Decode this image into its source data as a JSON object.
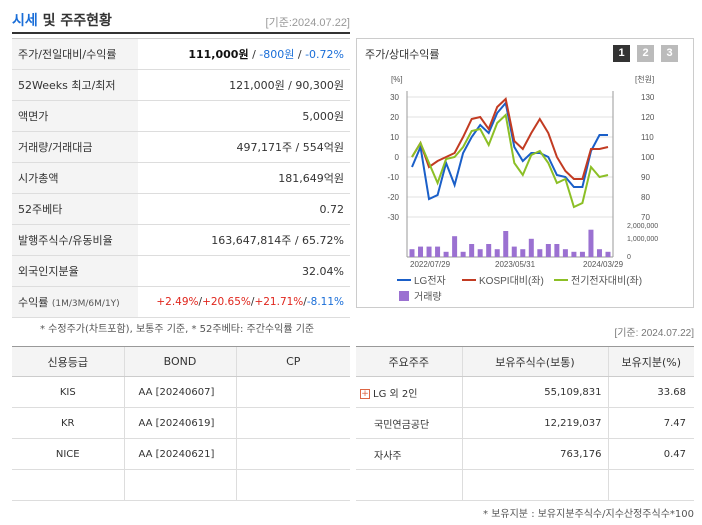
{
  "header": {
    "title_blue": "시세",
    "title_rest": " 및 주주현황",
    "date": "[기준:2024.07.22]"
  },
  "summary": [
    {
      "key": "주가/전일대비/수익률",
      "value_price": "111,000원",
      "value_sep1": " / ",
      "value_change": "-800원",
      "value_sep2": " / ",
      "value_rate": "-0.72%"
    },
    {
      "key": "52Weeks 최고/최저",
      "value": "121,000원 / 90,300원"
    },
    {
      "key": "액면가",
      "value": "5,000원"
    },
    {
      "key": "거래량/거래대금",
      "value": "497,171주 / 554억원"
    },
    {
      "key": "시가총액",
      "value": "181,649억원"
    },
    {
      "key": "52주베타",
      "value": "0.72"
    },
    {
      "key": "발행주식수/유동비율",
      "value": "163,647,814주 / 65.72%"
    },
    {
      "key": "외국인지분율",
      "value": "32.04%"
    },
    {
      "key": "수익률",
      "key_small": "(1M/3M/6M/1Y)",
      "r1": "+2.49%",
      "r2": "+20.65%",
      "r3": "+21.71%",
      "r4": "-8.11%"
    }
  ],
  "note1": "* 수정주가(차트포함), 보통주 기준, * 52주베타: 주간수익률 기준",
  "chart_panel": {
    "title": "주가/상대수익률",
    "pages": [
      "1",
      "2",
      "3"
    ],
    "active_page": "1"
  },
  "chart_data": {
    "type": "line",
    "left_unit": "[%]",
    "right_unit": "[천원]",
    "left_ticks": [
      "30",
      "20",
      "10",
      "0",
      "-10",
      "-20",
      "-30"
    ],
    "right_ticks": [
      "130",
      "120",
      "110",
      "100",
      "90",
      "80",
      "70"
    ],
    "volume_ticks": [
      "2,000,000",
      "1,000,000",
      "0"
    ],
    "x_ticks": [
      "2022/07/29",
      "2023/05/31",
      "2024/03/29"
    ],
    "left_range": [
      -30,
      30
    ],
    "right_range": [
      70,
      130
    ],
    "series": [
      {
        "name": "LG전자",
        "axis": "left",
        "color": "#1a5fc8",
        "values": [
          -5,
          5,
          -21,
          -19,
          -3,
          -14,
          2,
          10,
          16,
          12,
          22,
          27,
          5,
          -2,
          2,
          2,
          0,
          -9,
          -10,
          -15,
          -15,
          3,
          11,
          11
        ]
      },
      {
        "name": "KOSPI대비(좌)",
        "axis": "left",
        "color": "#c23b22",
        "values": [
          0,
          7,
          -5,
          -2,
          0,
          2,
          10,
          19,
          20,
          14,
          25,
          29,
          8,
          4,
          12,
          19,
          12,
          0,
          -7,
          -11,
          -11,
          4,
          4,
          5
        ]
      },
      {
        "name": "전기전자대비(좌)",
        "axis": "left",
        "color": "#8cbf26",
        "values": [
          0,
          7,
          -3,
          -13,
          -1,
          0,
          5,
          13,
          14,
          6,
          17,
          21,
          -3,
          -9,
          1,
          3,
          -3,
          -13,
          -11,
          -25,
          -23,
          -5,
          -10,
          -9
        ]
      },
      {
        "name": "거래량",
        "type": "bar",
        "color": "#9b71d1",
        "values": [
          0.3,
          0.4,
          0.4,
          0.4,
          0.2,
          0.8,
          0.2,
          0.5,
          0.3,
          0.5,
          0.3,
          1.0,
          0.4,
          0.3,
          0.7,
          0.3,
          0.5,
          0.5,
          0.3,
          0.2,
          0.2,
          1.05,
          0.3,
          0.2
        ]
      }
    ]
  },
  "credit": {
    "headers": [
      "신용등급",
      "BOND",
      "CP"
    ],
    "rows": [
      [
        "KIS",
        "AA   [20240607]",
        ""
      ],
      [
        "KR",
        "AA   [20240619]",
        ""
      ],
      [
        "NICE",
        "AA   [20240621]",
        ""
      ],
      [
        "",
        "",
        ""
      ]
    ]
  },
  "date2": "[기준: 2024.07.22]",
  "holders": {
    "headers": [
      "주요주주",
      "보유주식수(보통)",
      "보유지분(%)"
    ],
    "rows": [
      [
        "LG 외 2인",
        "55,109,831",
        "33.68"
      ],
      [
        "국민연금공단",
        "12,219,037",
        "7.47"
      ],
      [
        "자사주",
        "763,176",
        "0.47"
      ],
      [
        "",
        "",
        ""
      ]
    ]
  },
  "note2": "* 보유지분 : 보유지분주식수/지수산정주식수*100"
}
